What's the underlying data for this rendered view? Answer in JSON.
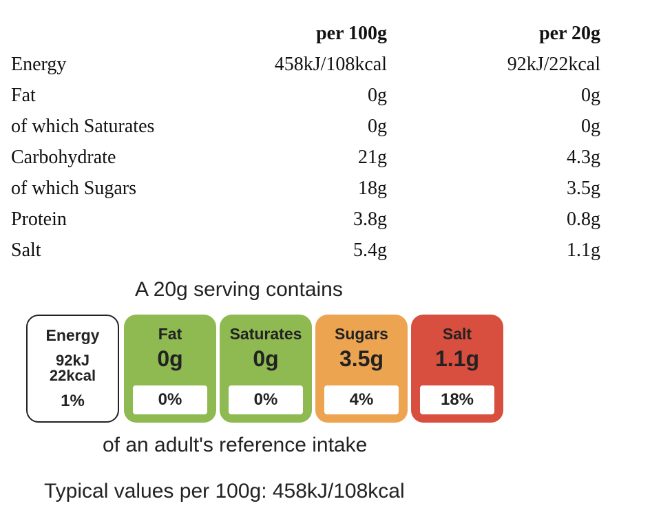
{
  "table": {
    "header": {
      "label": "",
      "per100": "per 100g",
      "per20": "per 20g"
    },
    "rows": [
      {
        "label": "Energy",
        "per100": "458kJ/108kcal",
        "per20": "92kJ/22kcal"
      },
      {
        "label": "Fat",
        "per100": "0g",
        "per20": "0g"
      },
      {
        "label": "of which Saturates",
        "per100": "0g",
        "per20": "0g"
      },
      {
        "label": "Carbohydrate",
        "per100": "21g",
        "per20": "4.3g"
      },
      {
        "label": "of which Sugars",
        "per100": "18g",
        "per20": "3.5g"
      },
      {
        "label": "Protein",
        "per100": "3.8g",
        "per20": "0.8g"
      },
      {
        "label": "Salt",
        "per100": "5.4g",
        "per20": "1.1g"
      }
    ]
  },
  "label_panel": {
    "serving_title": "A 20g serving contains",
    "energy": {
      "name": "Energy",
      "kj": "92kJ",
      "kcal": "22kcal",
      "percent": "1%"
    },
    "tiles": [
      {
        "name": "Fat",
        "amount": "0g",
        "percent": "0%",
        "color": "#8fb951"
      },
      {
        "name": "Saturates",
        "amount": "0g",
        "percent": "0%",
        "color": "#8fb951"
      },
      {
        "name": "Sugars",
        "amount": "3.5g",
        "percent": "4%",
        "color": "#eda451"
      },
      {
        "name": "Salt",
        "amount": "1.1g",
        "percent": "18%",
        "color": "#d84e3f"
      }
    ],
    "intake_text": "of an adult's reference intake",
    "typical_text": "Typical values per 100g: 458kJ/108kcal"
  }
}
